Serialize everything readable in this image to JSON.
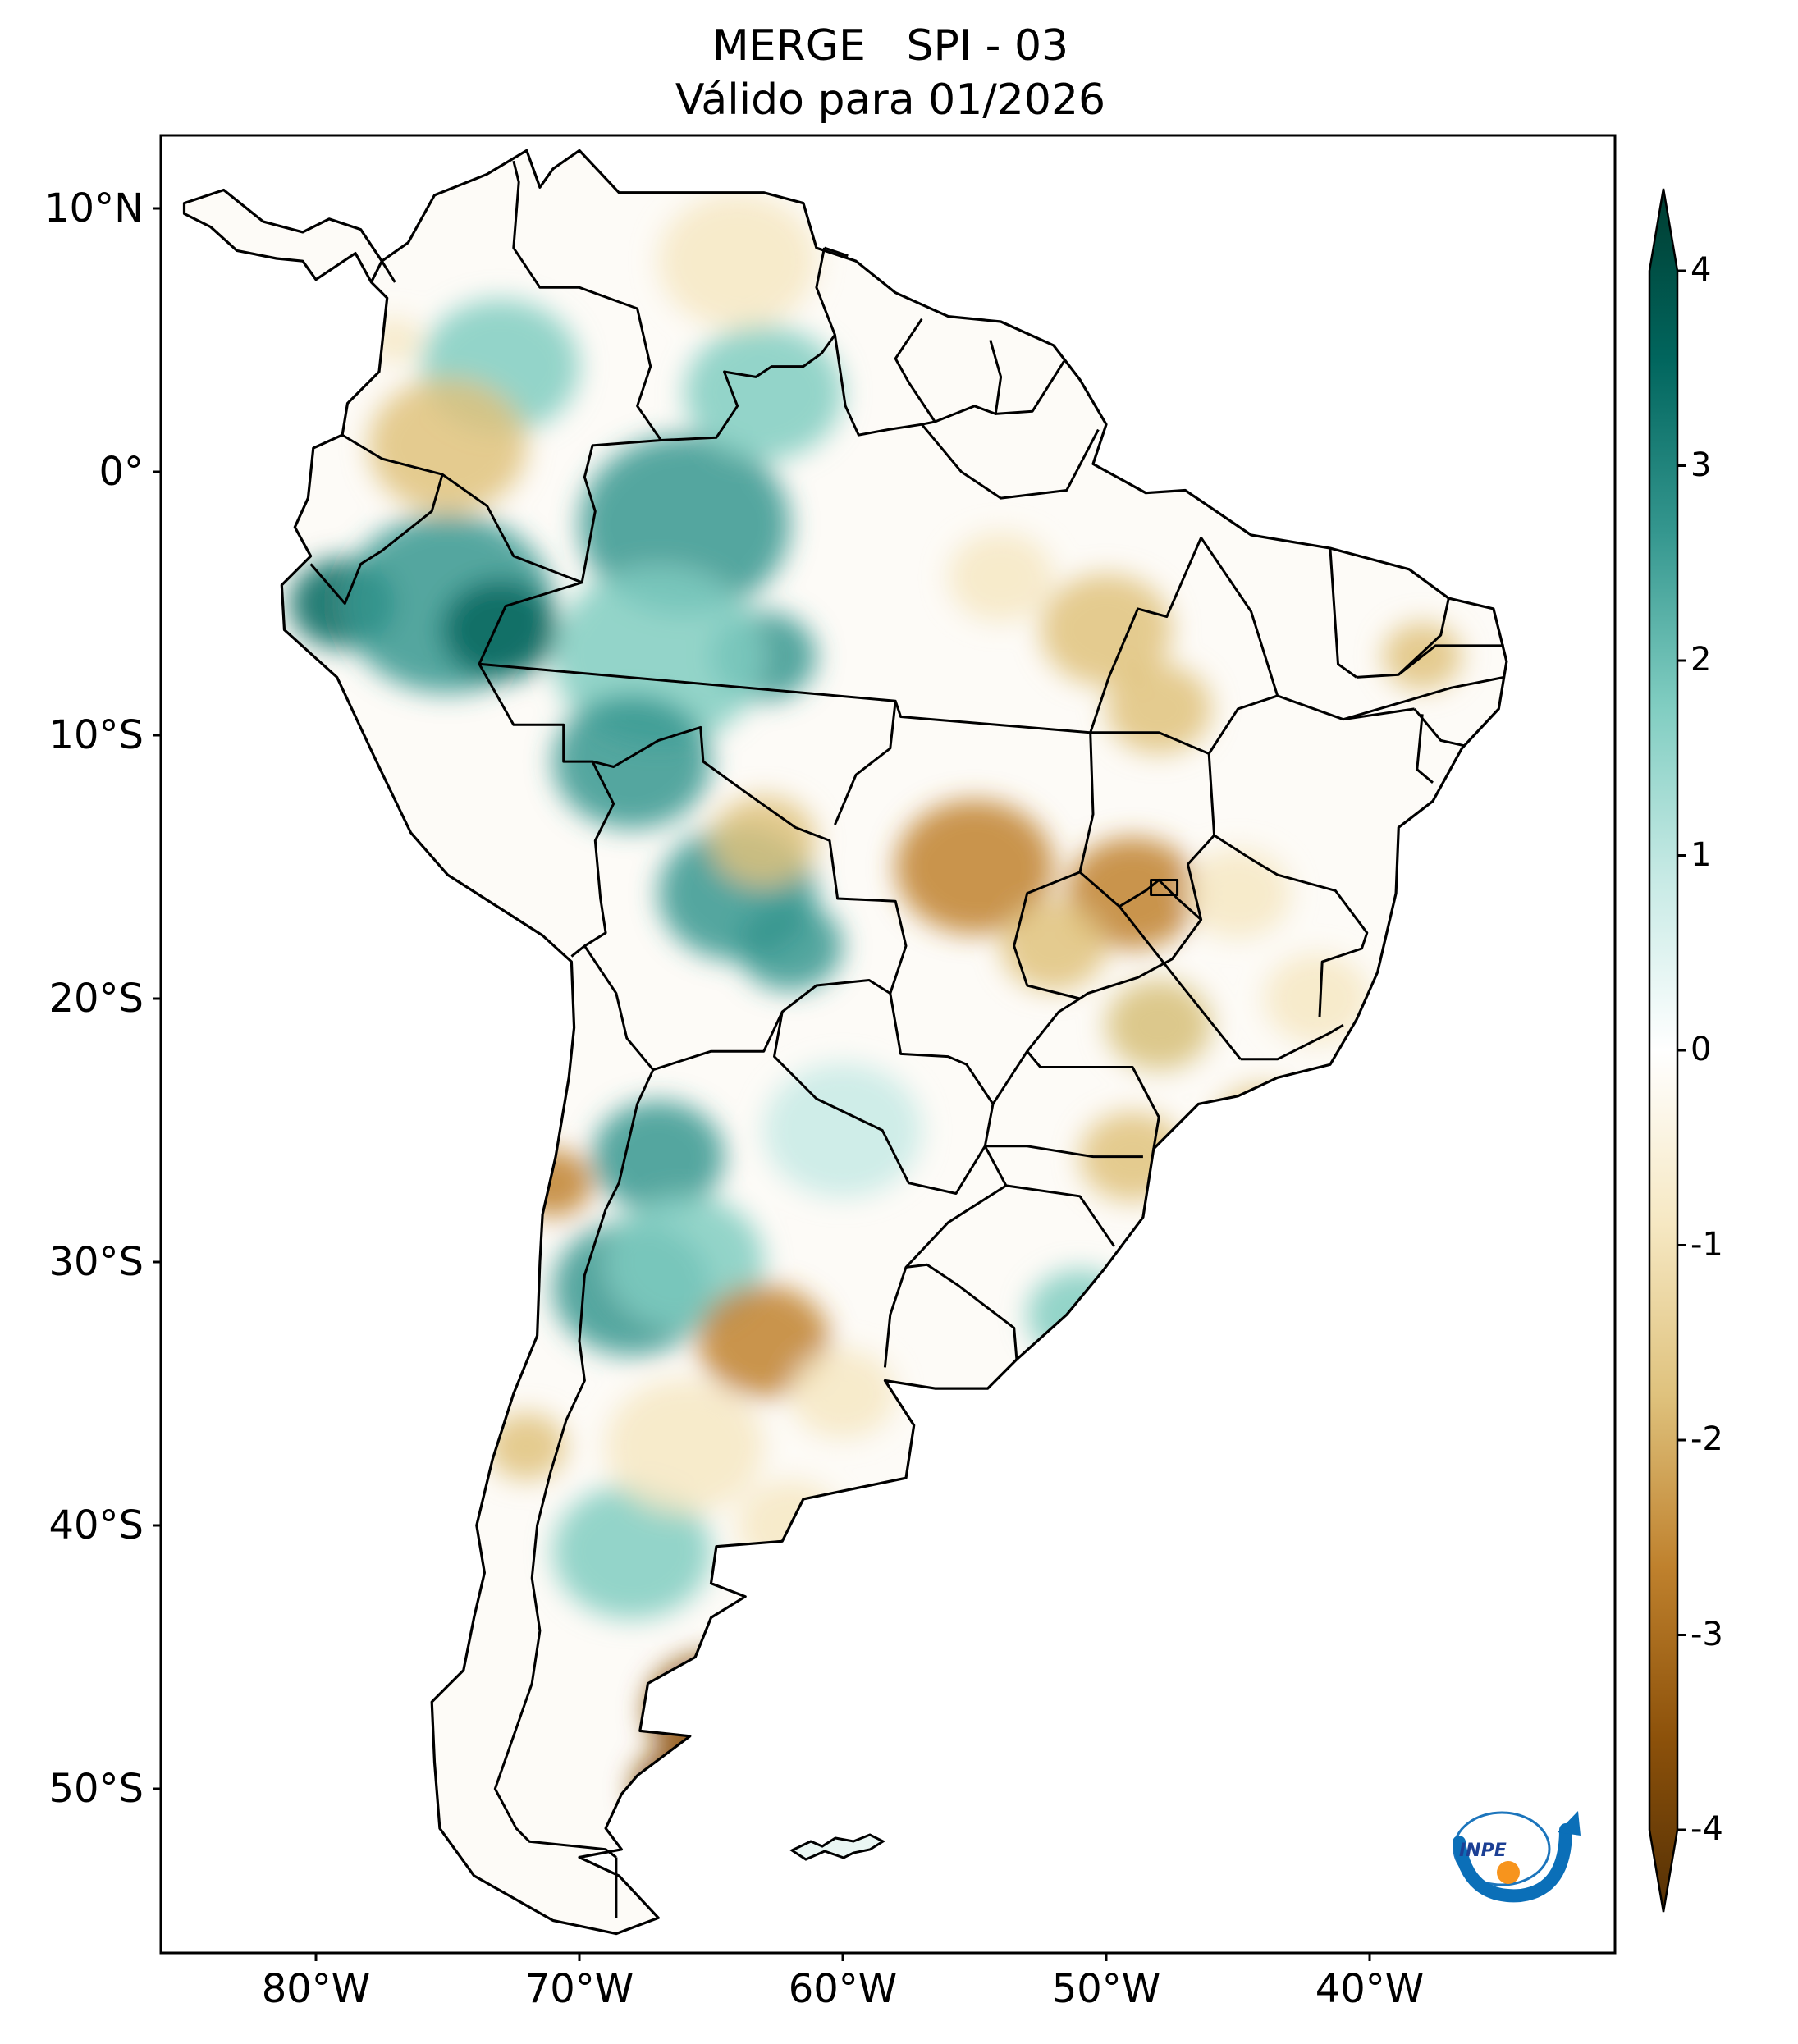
{
  "title": {
    "line1": "MERGE   SPI - 03",
    "line2": "Válido para 01/2026"
  },
  "axes": {
    "lat_ticks": [
      {
        "label": "10°N",
        "value": 10
      },
      {
        "label": "0°",
        "value": 0
      },
      {
        "label": "10°S",
        "value": -10
      },
      {
        "label": "20°S",
        "value": -20
      },
      {
        "label": "30°S",
        "value": -30
      },
      {
        "label": "40°S",
        "value": -40
      },
      {
        "label": "50°S",
        "value": -50
      }
    ],
    "lon_ticks": [
      {
        "label": "80°W",
        "value": -80
      },
      {
        "label": "70°W",
        "value": -70
      },
      {
        "label": "60°W",
        "value": -60
      },
      {
        "label": "50°W",
        "value": -50
      },
      {
        "label": "40°W",
        "value": -40
      }
    ],
    "lon_range": [
      -85,
      -30
    ],
    "lat_range": [
      -56,
      13
    ]
  },
  "colorbar": {
    "ticks": [
      {
        "label": "4",
        "value": 4
      },
      {
        "label": "3",
        "value": 3
      },
      {
        "label": "2",
        "value": 2
      },
      {
        "label": "1",
        "value": 1
      },
      {
        "label": "0",
        "value": 0
      },
      {
        "label": "-1",
        "value": -1
      },
      {
        "label": "-2",
        "value": -2
      },
      {
        "label": "-3",
        "value": -3
      },
      {
        "label": "-4",
        "value": -4
      }
    ],
    "range": [
      -4,
      4
    ],
    "colors": [
      "#543005",
      "#8c510a",
      "#bf812d",
      "#dfc27d",
      "#f6e8c3",
      "#ffffff",
      "#c7eae5",
      "#80cdc1",
      "#35978f",
      "#01665e",
      "#003c30"
    ]
  },
  "logo": {
    "text": "INPE"
  },
  "colors": {
    "continent_outline": "#000000",
    "frame": "#000000"
  }
}
